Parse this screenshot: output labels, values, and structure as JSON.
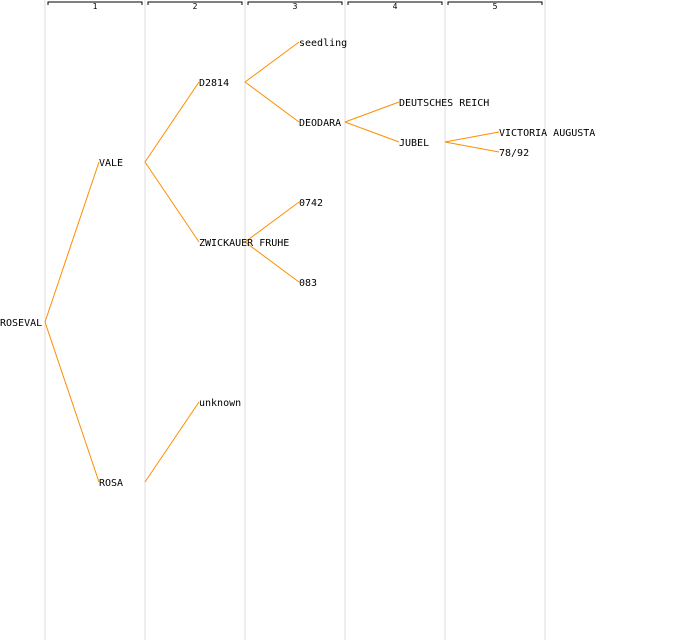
{
  "colors": {
    "link": "#ff8c00",
    "column_line": "#e8e8e8",
    "bracket": "#000000",
    "text": "#000000"
  },
  "generations": [
    "1",
    "2",
    "3",
    "4",
    "5"
  ],
  "nodes": [
    {
      "id": "roseval",
      "label": "ROSEVAL",
      "generation": 0,
      "parent": null
    },
    {
      "id": "vale",
      "label": "VALE",
      "generation": 1,
      "parent": "roseval"
    },
    {
      "id": "rosa",
      "label": "ROSA",
      "generation": 1,
      "parent": "roseval"
    },
    {
      "id": "d2814",
      "label": "D2814",
      "generation": 2,
      "parent": "vale"
    },
    {
      "id": "zwickauer",
      "label": "ZWICKAUER FRUHE",
      "generation": 2,
      "parent": "vale"
    },
    {
      "id": "unknown",
      "label": "unknown",
      "generation": 2,
      "parent": "rosa"
    },
    {
      "id": "seedling",
      "label": "seedling",
      "generation": 3,
      "parent": "d2814"
    },
    {
      "id": "deodara",
      "label": "DEODARA",
      "generation": 3,
      "parent": "d2814"
    },
    {
      "id": "o742",
      "label": "0742",
      "generation": 3,
      "parent": "zwickauer"
    },
    {
      "id": "o83",
      "label": "083",
      "generation": 3,
      "parent": "zwickauer"
    },
    {
      "id": "deutsches",
      "label": "DEUTSCHES REICH",
      "generation": 4,
      "parent": "deodara"
    },
    {
      "id": "jubel",
      "label": "JUBEL",
      "generation": 4,
      "parent": "deodara"
    },
    {
      "id": "victoria",
      "label": "VICTORIA AUGUSTA",
      "generation": 5,
      "parent": "jubel"
    },
    {
      "id": "n7892",
      "label": "78/92",
      "generation": 5,
      "parent": "jubel"
    }
  ]
}
